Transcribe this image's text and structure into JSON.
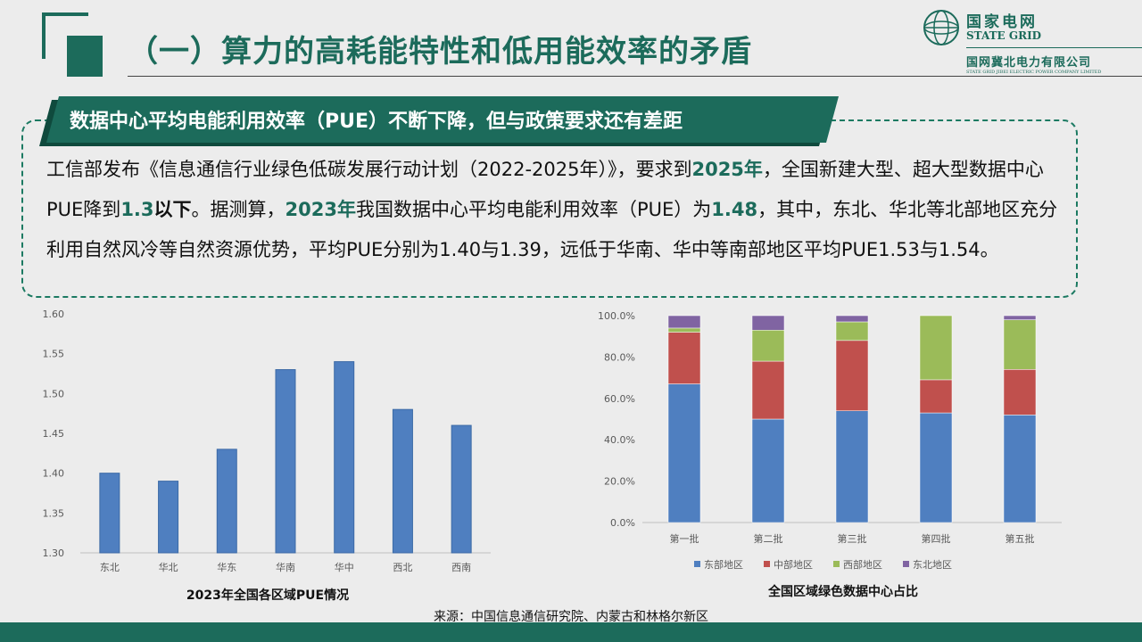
{
  "header": {
    "title": "（一）算力的高耗能特性和低用能效率的矛盾",
    "logo_cn": "国家电网",
    "logo_en": "STATE GRID",
    "company_cn": "国网冀北电力有限公司",
    "company_en": "STATE GRID JIBEI ELECTRIC POWER COMPANY LIMITED"
  },
  "banner": {
    "text": "数据中心平均电能利用效率（PUE）不断下降，但与政策要求还有差距"
  },
  "paragraph": {
    "p1": "工信部发布《信息通信行业绿色低碳发展行动计划（2022-2025年）》，要求到",
    "h1": "2025年",
    "p2": "，全国新建大型、超大型数据中心PUE降到",
    "h2": "1.3",
    "h3": "以下",
    "p3": "。据测算，",
    "h4": "2023年",
    "p4": "我国数据中心平均电能利用效率（PUE）为",
    "h5": "1.48",
    "p5": "，其中，东北、华北等北部地区充分利用自然风冷等自然资源优势，平均PUE分别为1.40与1.39，远低于华南、华中等南部地区平均PUE1.53与1.54。"
  },
  "source": "来源：中国信息通信研究院、内蒙古和林格尔新区",
  "colors": {
    "brand": "#1c6b5b",
    "bar": "#4f7fc0",
    "east": "#4f7fc0",
    "central": "#c0504d",
    "west": "#9bbb59",
    "northeast": "#8064a2"
  },
  "chart_data": [
    {
      "type": "bar",
      "title": "2023年全国各区域PUE情况",
      "categories": [
        "东北",
        "华北",
        "华东",
        "华南",
        "华中",
        "西北",
        "西南"
      ],
      "values": [
        1.4,
        1.39,
        1.43,
        1.53,
        1.54,
        1.48,
        1.46
      ],
      "ylim": [
        1.3,
        1.6
      ],
      "yticks": [
        "1.30",
        "1.35",
        "1.40",
        "1.45",
        "1.50",
        "1.55",
        "1.60"
      ],
      "xlabel": "",
      "ylabel": ""
    },
    {
      "type": "bar",
      "stacked": true,
      "title": "全国区域绿色数据中心占比",
      "categories": [
        "第一批",
        "第二批",
        "第三批",
        "第四批",
        "第五批"
      ],
      "series": [
        {
          "name": "东部地区",
          "values": [
            67,
            50,
            54,
            53,
            52
          ]
        },
        {
          "name": "中部地区",
          "values": [
            25,
            28,
            34,
            16,
            22
          ]
        },
        {
          "name": "西部地区",
          "values": [
            2,
            15,
            9,
            31,
            24
          ]
        },
        {
          "name": "东北地区",
          "values": [
            6,
            7,
            3,
            0,
            2
          ]
        }
      ],
      "ylim": [
        0,
        100
      ],
      "yticks": [
        "0.0%",
        "20.0%",
        "40.0%",
        "60.0%",
        "80.0%",
        "100.0%"
      ],
      "legend_position": "bottom"
    }
  ]
}
